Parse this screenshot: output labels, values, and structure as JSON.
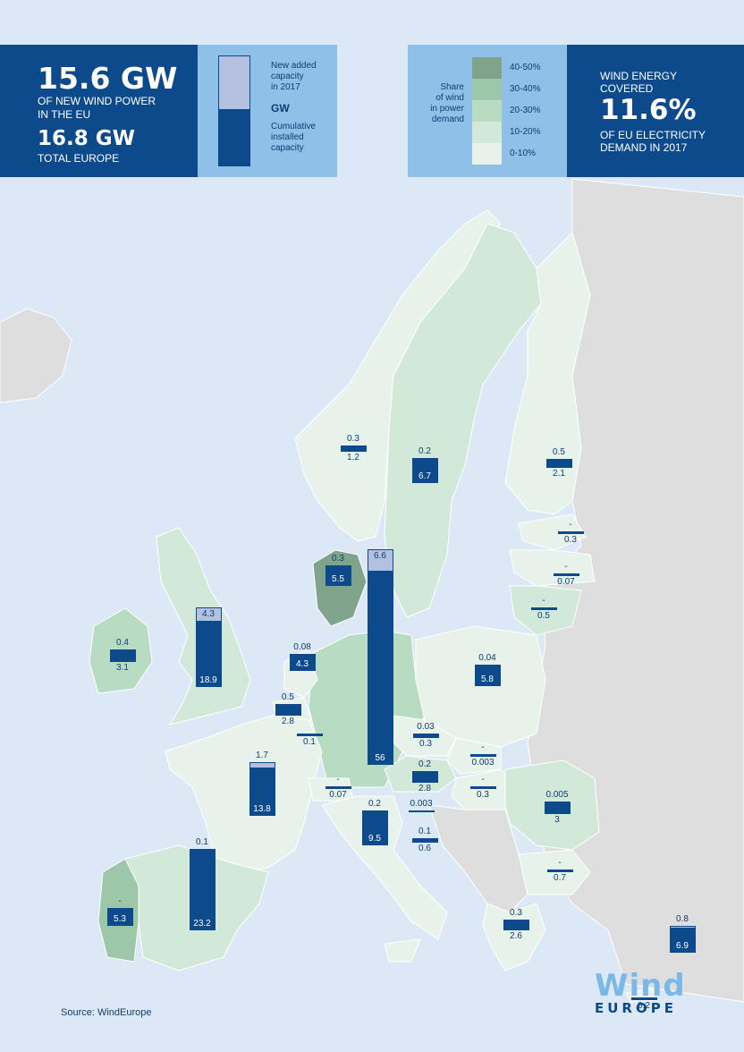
{
  "header": {
    "eu_new_value": "15.6 GW",
    "eu_new_caption_1": "OF NEW WIND POWER",
    "eu_new_caption_2": "IN THE EU",
    "europe_new_value": "16.8 GW",
    "europe_new_caption": "TOTAL EUROPE",
    "legend_bar_new_1": "New added",
    "legend_bar_new_2": "capacity",
    "legend_bar_new_3": "in 2017",
    "legend_bar_unit": "GW",
    "legend_bar_cum_1": "Cumulative",
    "legend_bar_cum_2": "installed",
    "legend_bar_cum_3": "capacity",
    "share_title_1": "Share",
    "share_title_2": "of wind",
    "share_title_3": "in power",
    "share_title_4": "demand",
    "share_classes": [
      {
        "label": "40-50%",
        "color": "#7fa38b"
      },
      {
        "label": "30-40%",
        "color": "#9cc7a8"
      },
      {
        "label": "20-30%",
        "color": "#b8dcc2"
      },
      {
        "label": "10-20%",
        "color": "#d2e8d8"
      },
      {
        "label": "0-10%",
        "color": "#e6f2ea"
      }
    ],
    "demand_caption_1": "WIND ENERGY",
    "demand_caption_2": "COVERED",
    "demand_value": "11.6%",
    "demand_caption_3": "OF EU ELECTRICITY",
    "demand_caption_4": "DEMAND IN 2017"
  },
  "countries": [
    {
      "id": "norway",
      "new": "0.3",
      "cum": "1.2",
      "newGW": 0.3,
      "cumGW": 1.2
    },
    {
      "id": "sweden",
      "new": "0.2",
      "cum": "6.7",
      "newGW": 0.2,
      "cumGW": 6.7
    },
    {
      "id": "finland",
      "new": "0.5",
      "cum": "2.1",
      "newGW": 0.5,
      "cumGW": 2.1
    },
    {
      "id": "estonia",
      "new": "-",
      "cum": "0.3",
      "newGW": 0,
      "cumGW": 0.3
    },
    {
      "id": "latvia",
      "new": "-",
      "cum": "0.07",
      "newGW": 0,
      "cumGW": 0.07
    },
    {
      "id": "lithuania",
      "new": "-",
      "cum": "0.5",
      "newGW": 0,
      "cumGW": 0.5
    },
    {
      "id": "denmark",
      "new": "0.3",
      "cum": "5.5",
      "newGW": 0.3,
      "cumGW": 5.5
    },
    {
      "id": "germany",
      "new": "6.6",
      "cum": "56",
      "newGW": 6.6,
      "cumGW": 56
    },
    {
      "id": "uk",
      "new": "4.3",
      "cum": "18.9",
      "newGW": 4.3,
      "cumGW": 18.9
    },
    {
      "id": "ireland",
      "new": "0.4",
      "cum": "3.1",
      "newGW": 0.4,
      "cumGW": 3.1
    },
    {
      "id": "netherlands",
      "new": "0.08",
      "cum": "4.3",
      "newGW": 0.08,
      "cumGW": 4.3
    },
    {
      "id": "belgium",
      "new": "0.5",
      "cum": "2.8",
      "newGW": 0.5,
      "cumGW": 2.8
    },
    {
      "id": "luxembourg",
      "new": "",
      "cum": "0.1",
      "newGW": 0,
      "cumGW": 0.1
    },
    {
      "id": "poland",
      "new": "0.04",
      "cum": "5.8",
      "newGW": 0.04,
      "cumGW": 5.8
    },
    {
      "id": "czech",
      "new": "0.03",
      "cum": "0.3",
      "newGW": 0.03,
      "cumGW": 0.3
    },
    {
      "id": "slovakia",
      "new": "-",
      "cum": "0.003",
      "newGW": 0,
      "cumGW": 0.003
    },
    {
      "id": "austria",
      "new": "0.2",
      "cum": "2.8",
      "newGW": 0.2,
      "cumGW": 2.8
    },
    {
      "id": "hungary",
      "new": "-",
      "cum": "0.3",
      "newGW": 0,
      "cumGW": 0.3
    },
    {
      "id": "romania",
      "new": "0.005",
      "cum": "3",
      "newGW": 0.005,
      "cumGW": 3
    },
    {
      "id": "bulgaria",
      "new": "-",
      "cum": "0.7",
      "newGW": 0,
      "cumGW": 0.7
    },
    {
      "id": "france",
      "new": "1.7",
      "cum": "13.8",
      "newGW": 1.7,
      "cumGW": 13.8
    },
    {
      "id": "switzerland",
      "new": "-",
      "cum": "0.07",
      "newGW": 0,
      "cumGW": 0.07
    },
    {
      "id": "italy",
      "new": "0.2",
      "cum": "9.5",
      "newGW": 0.2,
      "cumGW": 9.5
    },
    {
      "id": "slovenia",
      "new": "0.003",
      "cum": "",
      "newGW": 0.003,
      "cumGW": 0
    },
    {
      "id": "croatia",
      "new": "0.1",
      "cum": "0.6",
      "newGW": 0.1,
      "cumGW": 0.6
    },
    {
      "id": "spain",
      "new": "0.1",
      "cum": "23.2",
      "newGW": 0.1,
      "cumGW": 23.2
    },
    {
      "id": "portugal",
      "new": "-",
      "cum": "5.3",
      "newGW": 0,
      "cumGW": 5.3
    },
    {
      "id": "greece",
      "new": "0.3",
      "cum": "2.6",
      "newGW": 0.3,
      "cumGW": 2.6
    },
    {
      "id": "turkey",
      "new": "0.8",
      "cum": "6.9",
      "newGW": 0.8,
      "cumGW": 6.9
    },
    {
      "id": "cyprus",
      "new": "-",
      "cum": "0.2",
      "newGW": 0,
      "cumGW": 0.2
    }
  ],
  "footer": {
    "source": "Source: WindEurope",
    "logo_text_1": "Wind",
    "logo_text_2": "EUROPE"
  }
}
